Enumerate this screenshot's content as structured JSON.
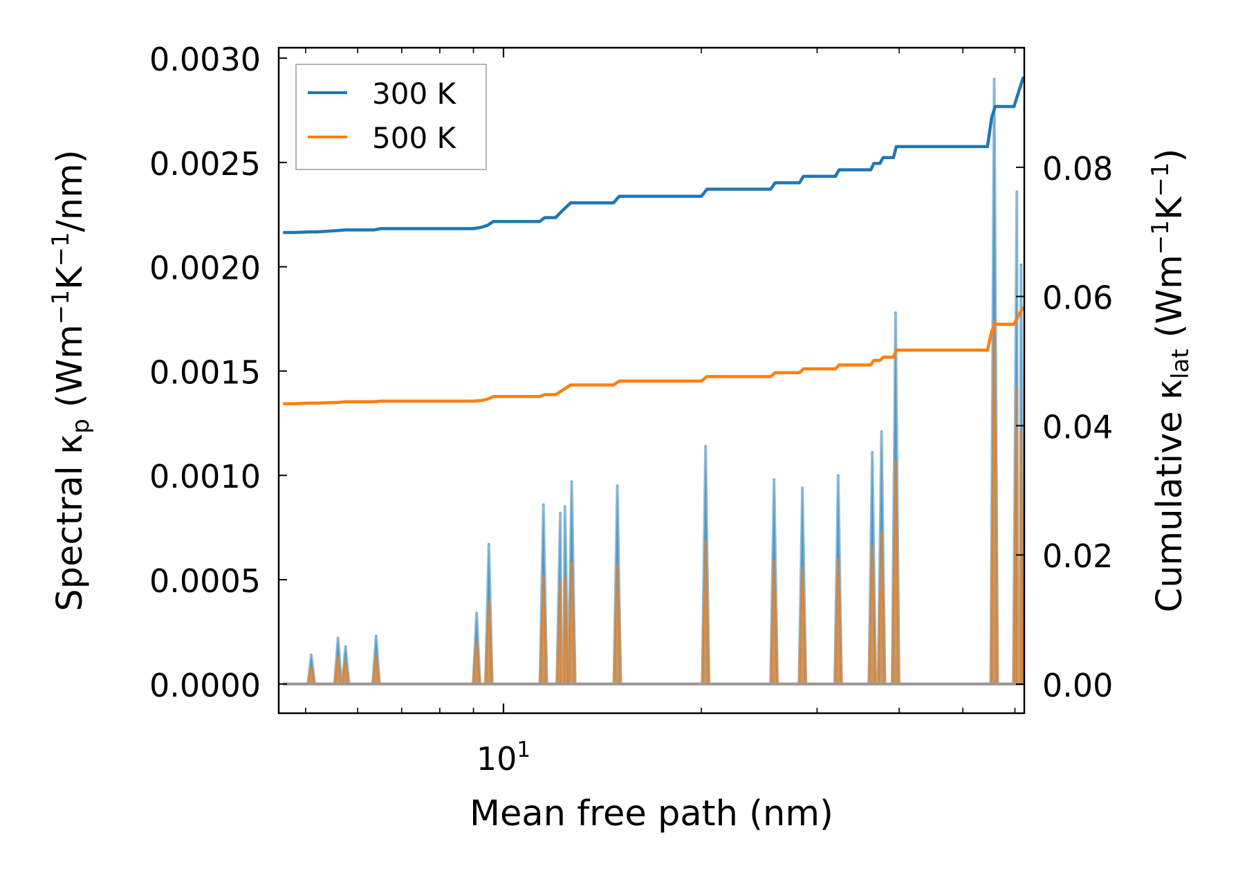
{
  "chart_data": {
    "type": "line",
    "xscale": "log",
    "xlabel": "Mean free path (nm)",
    "ylabel_left_parts": [
      "Spectral κ",
      "p",
      " (Wm",
      "−1",
      "K",
      "−1",
      "/nm)"
    ],
    "ylabel_right_parts": [
      "Cumulative κ",
      "lat",
      " (Wm",
      "−1",
      "K",
      "−1",
      ")"
    ],
    "xlim": [
      4.55,
      62
    ],
    "ylim_left": [
      -0.00014,
      0.00305
    ],
    "ylim_right": [
      -0.0045,
      0.0985
    ],
    "x_major_tick": {
      "value": 10,
      "base": "10",
      "exp": "1"
    },
    "x_minor_ticks": [
      5,
      6,
      7,
      8,
      9,
      20,
      30,
      40,
      50,
      60
    ],
    "y_left_ticks": [
      {
        "value": 0.0,
        "label": "0.0000"
      },
      {
        "value": 0.0005,
        "label": "0.0005"
      },
      {
        "value": 0.001,
        "label": "0.0010"
      },
      {
        "value": 0.0015,
        "label": "0.0015"
      },
      {
        "value": 0.002,
        "label": "0.0020"
      },
      {
        "value": 0.0025,
        "label": "0.0025"
      },
      {
        "value": 0.003,
        "label": "0.0030"
      }
    ],
    "y_right_ticks": [
      {
        "value": 0.0,
        "label": "0.00"
      },
      {
        "value": 0.02,
        "label": "0.02"
      },
      {
        "value": 0.04,
        "label": "0.04"
      },
      {
        "value": 0.06,
        "label": "0.06"
      },
      {
        "value": 0.08,
        "label": "0.08"
      }
    ],
    "legend": {
      "location": "top-left",
      "entries": [
        "300 K",
        "500 K"
      ]
    },
    "series": [
      {
        "name": "300 K",
        "color": "#1f77b4",
        "spectral_peaks": [
          [
            5.1,
            0.00014
          ],
          [
            5.6,
            0.00022
          ],
          [
            5.75,
            0.00018
          ],
          [
            6.4,
            0.00023
          ],
          [
            9.1,
            0.00034
          ],
          [
            9.5,
            0.00067
          ],
          [
            11.5,
            0.00086
          ],
          [
            12.2,
            0.00082
          ],
          [
            12.4,
            0.00085
          ],
          [
            12.7,
            0.00097
          ],
          [
            14.9,
            0.00095
          ],
          [
            20.3,
            0.00114
          ],
          [
            25.8,
            0.00098
          ],
          [
            28.5,
            0.00094
          ],
          [
            32.3,
            0.001
          ],
          [
            36.4,
            0.00111
          ],
          [
            37.6,
            0.00121
          ],
          [
            39.5,
            0.00178
          ],
          [
            55.8,
            0.0029
          ],
          [
            60.4,
            0.00236
          ],
          [
            61.3,
            0.00201
          ]
        ],
        "cumulative_x": [
          4.62,
          4.8,
          5.05,
          5.2,
          5.6,
          5.75,
          6.35,
          6.5,
          9.0,
          9.25,
          9.45,
          9.65,
          11.35,
          11.55,
          12.0,
          12.3,
          12.65,
          12.9,
          14.7,
          15.0,
          20.0,
          20.4,
          25.5,
          25.9,
          28.2,
          28.6,
          32.0,
          32.4,
          36.2,
          36.6,
          37.4,
          37.8,
          39.2,
          39.6,
          54.5,
          55.3,
          56.0,
          59.8,
          61.8
        ],
        "cumulative_y": [
          0.0699,
          0.0699,
          0.07,
          0.07,
          0.0702,
          0.0703,
          0.0703,
          0.0705,
          0.0705,
          0.0707,
          0.071,
          0.0716,
          0.0716,
          0.0722,
          0.0722,
          0.0733,
          0.0745,
          0.0745,
          0.0745,
          0.0755,
          0.0755,
          0.0766,
          0.0766,
          0.0776,
          0.0776,
          0.0786,
          0.0786,
          0.0796,
          0.0796,
          0.0806,
          0.0806,
          0.0815,
          0.0815,
          0.0832,
          0.0832,
          0.0877,
          0.0894,
          0.0894,
          0.094
        ]
      },
      {
        "name": "500 K",
        "color": "#ff7f0e",
        "spectral_peaks": [
          [
            5.1,
            8e-05
          ],
          [
            5.6,
            0.00013
          ],
          [
            5.75,
            0.00011
          ],
          [
            6.4,
            0.00014
          ],
          [
            9.1,
            0.0002
          ],
          [
            9.5,
            0.0004
          ],
          [
            11.5,
            0.00052
          ],
          [
            12.2,
            0.00049
          ],
          [
            12.4,
            0.00051
          ],
          [
            12.7,
            0.00058
          ],
          [
            14.9,
            0.00057
          ],
          [
            20.3,
            0.00068
          ],
          [
            25.8,
            0.00059
          ],
          [
            28.5,
            0.00056
          ],
          [
            32.3,
            0.0006
          ],
          [
            36.4,
            0.00066
          ],
          [
            37.6,
            0.00073
          ],
          [
            39.5,
            0.00107
          ],
          [
            55.8,
            0.00174
          ],
          [
            60.4,
            0.00142
          ],
          [
            61.3,
            0.00121
          ]
        ],
        "cumulative_x": [
          4.62,
          4.8,
          5.05,
          5.2,
          5.6,
          5.75,
          6.35,
          6.5,
          9.0,
          9.25,
          9.45,
          9.65,
          11.35,
          11.55,
          12.0,
          12.3,
          12.65,
          12.9,
          14.7,
          15.0,
          20.0,
          20.4,
          25.5,
          25.9,
          28.2,
          28.6,
          32.0,
          32.4,
          36.2,
          36.6,
          37.4,
          37.8,
          39.2,
          39.6,
          54.5,
          55.3,
          56.0,
          59.8,
          61.8
        ],
        "cumulative_y": [
          0.0434,
          0.0434,
          0.0435,
          0.0435,
          0.0436,
          0.0437,
          0.0437,
          0.0438,
          0.0438,
          0.0439,
          0.0441,
          0.0445,
          0.0445,
          0.0448,
          0.0448,
          0.0455,
          0.0463,
          0.0463,
          0.0463,
          0.0469,
          0.0469,
          0.0476,
          0.0476,
          0.0482,
          0.0482,
          0.0488,
          0.0488,
          0.0494,
          0.0494,
          0.0501,
          0.0501,
          0.0506,
          0.0506,
          0.0517,
          0.0517,
          0.0546,
          0.0557,
          0.0557,
          0.0584
        ]
      }
    ],
    "baseline_color": "#999999"
  }
}
